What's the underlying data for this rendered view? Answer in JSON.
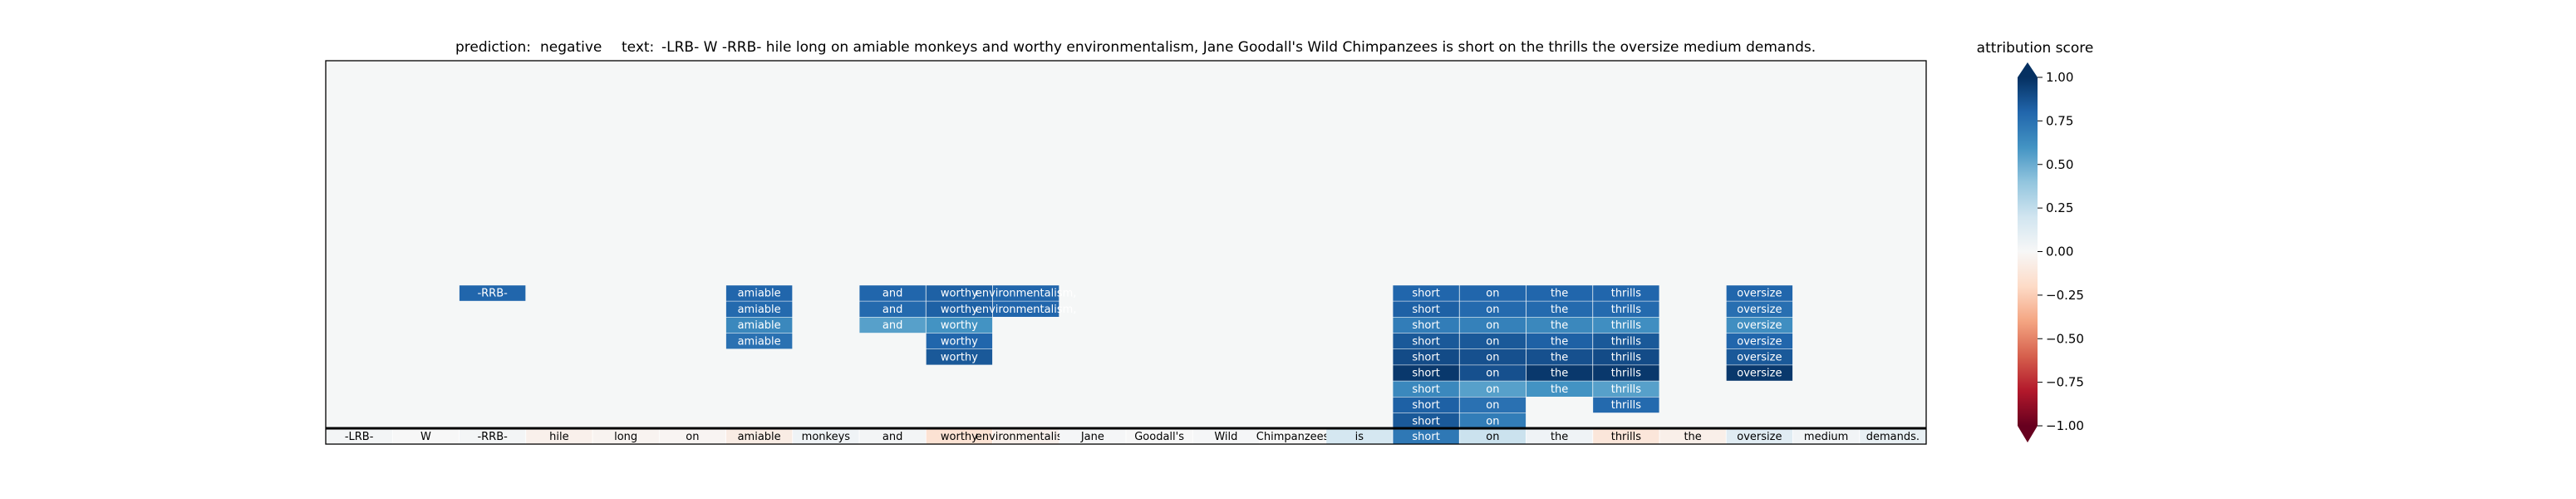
{
  "chart_data": {
    "type": "heatmap",
    "prediction_label": "prediction:",
    "prediction_value": "negative",
    "text_label": "text:",
    "text_value": "-LRB- W -RRB- hile long on amiable monkeys and worthy environmentalism, Jane Goodall's Wild Chimpanzees is short on the thrills the oversize medium demands.",
    "colorbar_title": "attribution score",
    "colorbar_range": [
      -1.0,
      1.0
    ],
    "colorbar_ticks": [
      "1.00",
      "0.75",
      "0.50",
      "0.25",
      "0.00",
      "−0.25",
      "−0.50",
      "−0.75",
      "−1.00"
    ],
    "colormap": "RdBu",
    "colormap_stops": [
      "#67001f",
      "#b2182b",
      "#d6604d",
      "#f4a582",
      "#fddbc7",
      "#f7f7f7",
      "#d1e5f0",
      "#92c5de",
      "#4393c3",
      "#2166ac",
      "#053061"
    ],
    "panel_background": "#f5f7f7",
    "tokens": [
      "-LRB-",
      "W",
      "-RRB-",
      "hile",
      "long",
      "on",
      "amiable",
      "monkeys",
      "and",
      "worthy",
      "environmentalism,",
      "Jane",
      "Goodall's",
      "Wild",
      "Chimpanzees",
      "is",
      "short",
      "on",
      "the",
      "thrills",
      "the",
      "oversize",
      "medium",
      "demands."
    ],
    "base_scores": [
      0.02,
      0.0,
      0.02,
      -0.05,
      -0.03,
      -0.02,
      -0.08,
      0.04,
      0.02,
      -0.15,
      -0.05,
      0.01,
      0.0,
      0.01,
      0.0,
      0.18,
      0.72,
      0.22,
      0.04,
      -0.12,
      -0.06,
      0.12,
      0.03,
      0.08
    ],
    "levels": [
      {
        "level": 1,
        "cells": [
          {
            "token": 16,
            "label": "short",
            "score": 0.85
          },
          {
            "token": 17,
            "label": "on",
            "score": 0.7
          }
        ]
      },
      {
        "level": 2,
        "cells": [
          {
            "token": 16,
            "label": "short",
            "score": 0.82
          },
          {
            "token": 17,
            "label": "on",
            "score": 0.75
          },
          {
            "token": 19,
            "label": "thrills",
            "score": 0.78
          }
        ]
      },
      {
        "level": 3,
        "cells": [
          {
            "token": 16,
            "label": "short",
            "score": 0.65
          },
          {
            "token": 17,
            "label": "on",
            "score": 0.55
          },
          {
            "token": 18,
            "label": "the",
            "score": 0.6
          },
          {
            "token": 19,
            "label": "thrills",
            "score": 0.55
          }
        ]
      },
      {
        "level": 4,
        "cells": [
          {
            "token": 16,
            "label": "short",
            "score": 0.97
          },
          {
            "token": 17,
            "label": "on",
            "score": 0.88
          },
          {
            "token": 18,
            "label": "the",
            "score": 0.97
          },
          {
            "token": 19,
            "label": "thrills",
            "score": 0.97
          },
          {
            "token": 21,
            "label": "oversize",
            "score": 0.97
          }
        ]
      },
      {
        "level": 5,
        "cells": [
          {
            "token": 9,
            "label": "worthy",
            "score": 0.85
          },
          {
            "token": 16,
            "label": "short",
            "score": 0.9
          },
          {
            "token": 17,
            "label": "on",
            "score": 0.88
          },
          {
            "token": 18,
            "label": "the",
            "score": 0.88
          },
          {
            "token": 19,
            "label": "thrills",
            "score": 0.9
          },
          {
            "token": 21,
            "label": "oversize",
            "score": 0.85
          }
        ]
      },
      {
        "level": 6,
        "cells": [
          {
            "token": 6,
            "label": "amiable",
            "score": 0.75
          },
          {
            "token": 9,
            "label": "worthy",
            "score": 0.8
          },
          {
            "token": 16,
            "label": "short",
            "score": 0.85
          },
          {
            "token": 17,
            "label": "on",
            "score": 0.85
          },
          {
            "token": 18,
            "label": "the",
            "score": 0.82
          },
          {
            "token": 19,
            "label": "thrills",
            "score": 0.85
          },
          {
            "token": 21,
            "label": "oversize",
            "score": 0.8
          }
        ]
      },
      {
        "level": 7,
        "cells": [
          {
            "token": 6,
            "label": "amiable",
            "score": 0.65
          },
          {
            "token": 8,
            "label": "and",
            "score": 0.55
          },
          {
            "token": 9,
            "label": "worthy",
            "score": 0.6
          },
          {
            "token": 16,
            "label": "short",
            "score": 0.7
          },
          {
            "token": 17,
            "label": "on",
            "score": 0.68
          },
          {
            "token": 18,
            "label": "the",
            "score": 0.65
          },
          {
            "token": 19,
            "label": "thrills",
            "score": 0.62
          },
          {
            "token": 21,
            "label": "oversize",
            "score": 0.62
          }
        ]
      },
      {
        "level": 8,
        "cells": [
          {
            "token": 6,
            "label": "amiable",
            "score": 0.78
          },
          {
            "token": 8,
            "label": "and",
            "score": 0.78
          },
          {
            "token": 9,
            "label": "worthy",
            "score": 0.82
          },
          {
            "token": 10,
            "label": "environmentalism,",
            "score": 0.8
          },
          {
            "token": 16,
            "label": "short",
            "score": 0.82
          },
          {
            "token": 17,
            "label": "on",
            "score": 0.78
          },
          {
            "token": 18,
            "label": "the",
            "score": 0.78
          },
          {
            "token": 19,
            "label": "thrills",
            "score": 0.78
          },
          {
            "token": 21,
            "label": "oversize",
            "score": 0.76
          }
        ]
      },
      {
        "level": 9,
        "cells": [
          {
            "token": 2,
            "label": "-RRB-",
            "score": 0.8
          },
          {
            "token": 6,
            "label": "amiable",
            "score": 0.8
          },
          {
            "token": 8,
            "label": "and",
            "score": 0.8
          },
          {
            "token": 9,
            "label": "worthy",
            "score": 0.82
          },
          {
            "token": 10,
            "label": "environmentalism,",
            "score": 0.8
          },
          {
            "token": 16,
            "label": "short",
            "score": 0.8
          },
          {
            "token": 17,
            "label": "on",
            "score": 0.8
          },
          {
            "token": 18,
            "label": "the",
            "score": 0.8
          },
          {
            "token": 19,
            "label": "thrills",
            "score": 0.8
          },
          {
            "token": 21,
            "label": "oversize",
            "score": 0.8
          }
        ]
      }
    ]
  }
}
